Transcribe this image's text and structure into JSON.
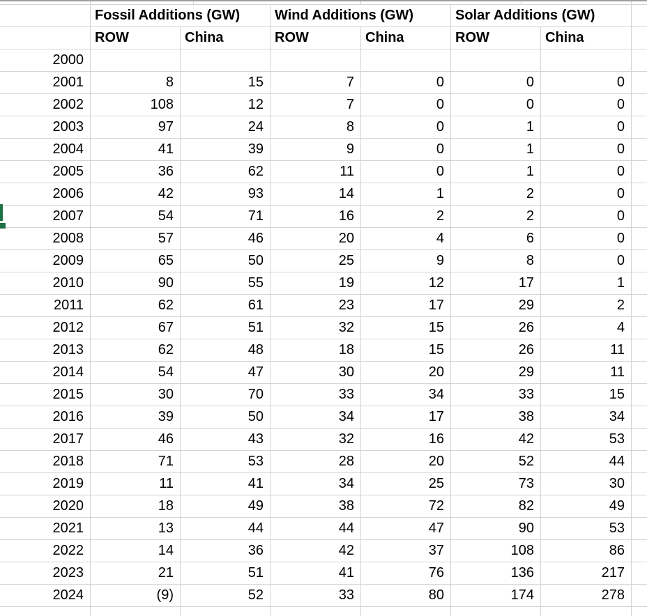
{
  "sheet": {
    "column_groups": [
      {
        "label": "Fossil Additions (GW)",
        "columns": [
          "ROW",
          "China"
        ]
      },
      {
        "label": "Wind Additions (GW)",
        "columns": [
          "ROW",
          "China"
        ]
      },
      {
        "label": "Solar Additions (GW)",
        "columns": [
          "ROW",
          "China"
        ]
      }
    ],
    "rows": [
      {
        "year": "2000",
        "values": [
          "",
          "",
          "",
          "",
          "",
          ""
        ]
      },
      {
        "year": "2001",
        "values": [
          "8",
          "15",
          "7",
          "0",
          "0",
          "0"
        ]
      },
      {
        "year": "2002",
        "values": [
          "108",
          "12",
          "7",
          "0",
          "0",
          "0"
        ]
      },
      {
        "year": "2003",
        "values": [
          "97",
          "24",
          "8",
          "0",
          "1",
          "0"
        ]
      },
      {
        "year": "2004",
        "values": [
          "41",
          "39",
          "9",
          "0",
          "1",
          "0"
        ]
      },
      {
        "year": "2005",
        "values": [
          "36",
          "62",
          "11",
          "0",
          "1",
          "0"
        ]
      },
      {
        "year": "2006",
        "values": [
          "42",
          "93",
          "14",
          "1",
          "2",
          "0"
        ]
      },
      {
        "year": "2007",
        "values": [
          "54",
          "71",
          "16",
          "2",
          "2",
          "0"
        ]
      },
      {
        "year": "2008",
        "values": [
          "57",
          "46",
          "20",
          "4",
          "6",
          "0"
        ]
      },
      {
        "year": "2009",
        "values": [
          "65",
          "50",
          "25",
          "9",
          "8",
          "0"
        ]
      },
      {
        "year": "2010",
        "values": [
          "90",
          "55",
          "19",
          "12",
          "17",
          "1"
        ]
      },
      {
        "year": "2011",
        "values": [
          "62",
          "61",
          "23",
          "17",
          "29",
          "2"
        ]
      },
      {
        "year": "2012",
        "values": [
          "67",
          "51",
          "32",
          "15",
          "26",
          "4"
        ]
      },
      {
        "year": "2013",
        "values": [
          "62",
          "48",
          "18",
          "15",
          "26",
          "11"
        ]
      },
      {
        "year": "2014",
        "values": [
          "54",
          "47",
          "30",
          "20",
          "29",
          "11"
        ]
      },
      {
        "year": "2015",
        "values": [
          "30",
          "70",
          "33",
          "34",
          "33",
          "15"
        ]
      },
      {
        "year": "2016",
        "values": [
          "39",
          "50",
          "34",
          "17",
          "38",
          "34"
        ]
      },
      {
        "year": "2017",
        "values": [
          "46",
          "43",
          "32",
          "16",
          "42",
          "53"
        ]
      },
      {
        "year": "2018",
        "values": [
          "71",
          "53",
          "28",
          "20",
          "52",
          "44"
        ]
      },
      {
        "year": "2019",
        "values": [
          "11",
          "41",
          "34",
          "25",
          "73",
          "30"
        ]
      },
      {
        "year": "2020",
        "values": [
          "18",
          "49",
          "38",
          "72",
          "82",
          "49"
        ]
      },
      {
        "year": "2021",
        "values": [
          "13",
          "44",
          "44",
          "47",
          "90",
          "53"
        ]
      },
      {
        "year": "2022",
        "values": [
          "14",
          "36",
          "42",
          "37",
          "108",
          "86"
        ]
      },
      {
        "year": "2023",
        "values": [
          "21",
          "51",
          "41",
          "76",
          "136",
          "217"
        ]
      },
      {
        "year": "2024",
        "values": [
          "(9)",
          "52",
          "33",
          "80",
          "174",
          "278"
        ]
      }
    ],
    "selection": {
      "anchor_year": "2007",
      "color": "#1F7245"
    },
    "colors": {
      "gridline": "#d4d4d4",
      "pane_divider": "#9e9e9e",
      "text": "#000000"
    }
  }
}
